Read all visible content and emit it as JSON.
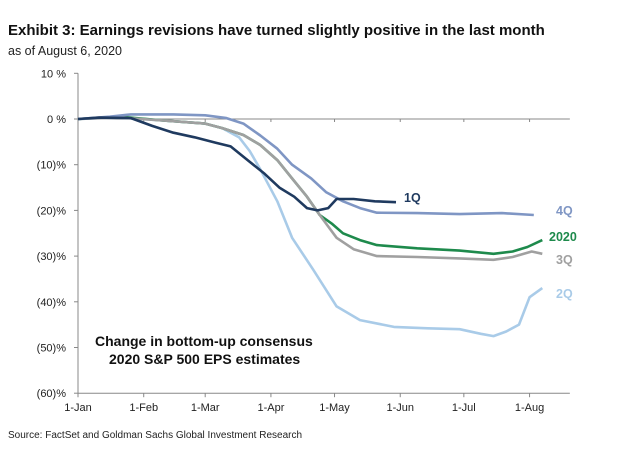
{
  "title": "Exhibit 3: Earnings revisions have turned slightly positive in the last month",
  "subtitle": "as of August 6, 2020",
  "source": "Source: FactSet and Goldman Sachs Global Investment Research",
  "chart_data": {
    "type": "line",
    "title": "Exhibit 3: Earnings revisions have turned slightly positive in the last month",
    "xlabel": "",
    "ylabel": "",
    "x_unit": "days since Jan 1, 2020",
    "xlim": [
      0,
      232
    ],
    "ylim": [
      -60,
      10
    ],
    "yticks": [
      10,
      0,
      -10,
      -20,
      -30,
      -40,
      -50,
      -60
    ],
    "ytick_labels": [
      "10 %",
      "0 %",
      "(10)%",
      "(20)%",
      "(30)%",
      "(40)%",
      "(50)%",
      "(60)%"
    ],
    "xticks": [
      0,
      31,
      60,
      91,
      121,
      152,
      182,
      213
    ],
    "xtick_labels": [
      "1-Jan",
      "1-Feb",
      "1-Mar",
      "1-Apr",
      "1-May",
      "1-Jun",
      "1-Jul",
      "1-Aug"
    ],
    "annotation": [
      "Change in bottom-up consensus",
      "2020 S&P 500 EPS estimates"
    ],
    "series": [
      {
        "name": "1Q",
        "color": "#1f3a5f",
        "x": [
          0,
          10,
          25,
          35,
          45,
          55,
          65,
          72,
          80,
          88,
          95,
          102,
          108,
          113,
          118,
          122,
          130,
          140,
          150
        ],
        "y": [
          0,
          0.3,
          0.2,
          -1.5,
          -3,
          -4,
          -5.2,
          -6,
          -9,
          -12,
          -15,
          -17,
          -19.5,
          -20,
          -19.5,
          -17.5,
          -17.5,
          -18,
          -18.2
        ]
      },
      {
        "name": "4Q",
        "color": "#7f96c4",
        "x": [
          0,
          15,
          25,
          45,
          60,
          70,
          78,
          86,
          94,
          101,
          110,
          117,
          125,
          133,
          141,
          160,
          180,
          200,
          215
        ],
        "y": [
          0,
          0.5,
          1,
          1,
          0.8,
          0.2,
          -1,
          -3.6,
          -6.5,
          -10,
          -13,
          -16,
          -18,
          -19.5,
          -20.5,
          -20.6,
          -20.8,
          -20.6,
          -21
        ]
      },
      {
        "name": "2020",
        "color": "#1e8a4c",
        "x": [
          0,
          20,
          40,
          60,
          68,
          78,
          86,
          94,
          101,
          108,
          114,
          120,
          125,
          133,
          141,
          160,
          180,
          196,
          205,
          212,
          219
        ],
        "y": [
          0,
          0.5,
          -0.3,
          -1,
          -2,
          -3.5,
          -5.7,
          -9,
          -13,
          -17,
          -21,
          -23,
          -25,
          -26.5,
          -27.6,
          -28.3,
          -28.8,
          -29.5,
          -29,
          -28,
          -26.5
        ]
      },
      {
        "name": "3Q",
        "color": "#a0a0a0",
        "x": [
          0,
          20,
          40,
          60,
          68,
          78,
          86,
          94,
          101,
          108,
          114,
          122,
          130,
          141,
          160,
          180,
          196,
          205,
          214,
          219
        ],
        "y": [
          0,
          0.3,
          -0.3,
          -1,
          -2,
          -3.5,
          -5.7,
          -9,
          -13,
          -17,
          -21,
          -26,
          -28.5,
          -30,
          -30.2,
          -30.5,
          -30.8,
          -30.2,
          -29,
          -29.5
        ]
      },
      {
        "name": "2Q",
        "color": "#a9cbe8",
        "x": [
          0,
          20,
          40,
          60,
          68,
          76,
          81,
          86,
          94,
          101,
          111,
          122,
          133,
          149,
          165,
          180,
          190,
          196,
          202,
          208,
          213,
          219
        ],
        "y": [
          0,
          0.3,
          -0.3,
          -1,
          -2,
          -4,
          -7,
          -11,
          -18,
          -26,
          -33,
          -41,
          -44,
          -45.5,
          -45.8,
          -46,
          -47,
          -47.5,
          -46.5,
          -45,
          -39,
          -37
        ]
      }
    ]
  }
}
